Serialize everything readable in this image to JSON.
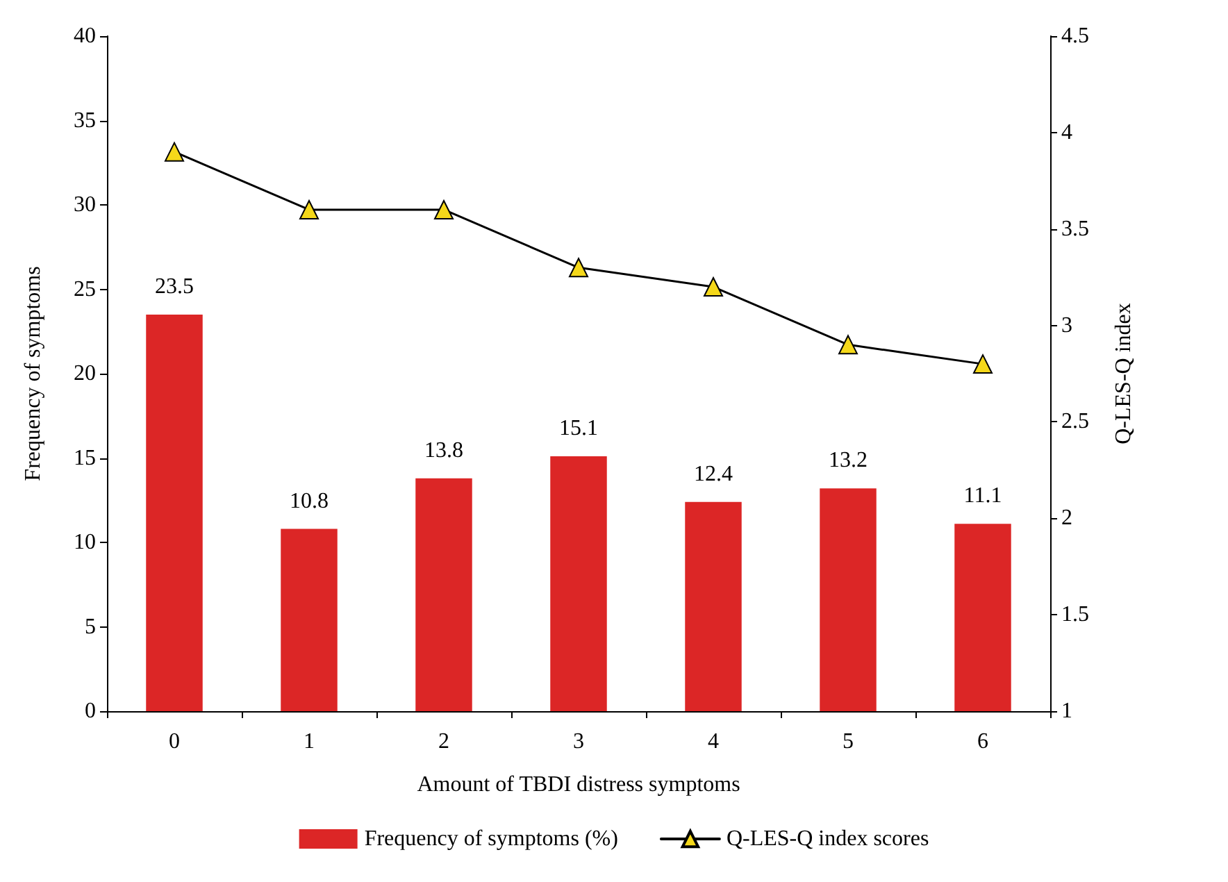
{
  "chart_data": {
    "type": "bar",
    "xlabel": "Amount of TBDI distress symptoms",
    "ylabel": "Frequency of symptoms",
    "y2label": "Q-LES-Q index",
    "categories": [
      "0",
      "1",
      "2",
      "3",
      "4",
      "5",
      "6"
    ],
    "series": [
      {
        "name": "Frequency of symptoms (%)",
        "color": "#dc2626",
        "values": [
          23.5,
          10.8,
          13.8,
          15.1,
          12.4,
          13.2,
          11.1
        ],
        "value_labels": [
          "23.5",
          "10.8",
          "13.8",
          "15.1",
          "12.4",
          "13.2",
          "11.1"
        ]
      },
      {
        "name": "Q-LES-Q index scores",
        "type": "line",
        "axis": "y2",
        "color": "#000000",
        "marker": "triangle",
        "values": [
          3.9,
          3.6,
          3.6,
          3.3,
          3.2,
          2.9,
          2.8
        ]
      }
    ],
    "ylim": [
      0,
      40
    ],
    "yticks": [
      0,
      5,
      10,
      15,
      20,
      25,
      30,
      35,
      40
    ],
    "y2lim": [
      1,
      4.5
    ],
    "y2ticks": [
      1,
      1.5,
      2,
      2.5,
      3,
      3.5,
      4,
      4.5
    ],
    "grid": false,
    "legend": "bottom"
  }
}
